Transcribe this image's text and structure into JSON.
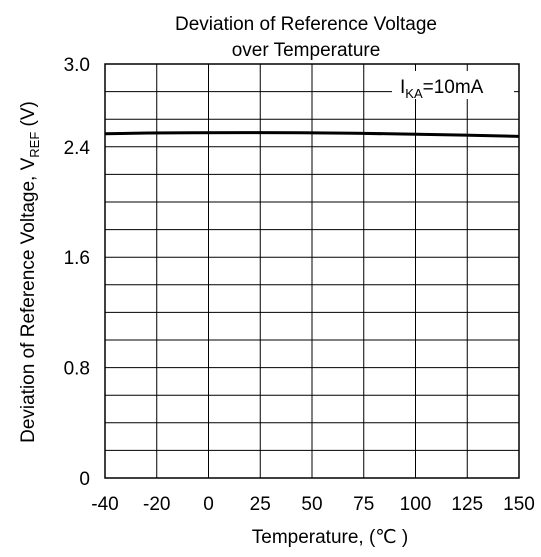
{
  "chart_data": {
    "type": "line",
    "title": [
      "Deviation of Reference Voltage",
      "over Temperature"
    ],
    "xlabel": "Temperature, (℃ )",
    "ylabel": "Deviation of Reference Voltage, V",
    "ylabel_sub": "REF",
    "ylabel_unit": " (V)",
    "xlim": [
      -40,
      150
    ],
    "ylim": [
      0,
      3.0
    ],
    "x_ticks": [
      -40,
      -20,
      0,
      25,
      50,
      75,
      100,
      125,
      150
    ],
    "x_tick_labels": [
      "-40",
      "-20",
      "0",
      "25",
      "50",
      "75",
      "100",
      "125",
      "150"
    ],
    "y_ticks": [
      0,
      0.8,
      1.6,
      2.4,
      3.0
    ],
    "y_tick_labels": [
      "0",
      "0.8",
      "1.6",
      "2.4",
      "3.0"
    ],
    "grid": true,
    "annotation": {
      "main": "I",
      "sub": "KA",
      "rest": "=10mA"
    },
    "series": [
      {
        "x": [
          -40,
          -20,
          0,
          25,
          50,
          75,
          100,
          125,
          150
        ],
        "y": [
          2.495,
          2.5,
          2.502,
          2.503,
          2.502,
          2.498,
          2.492,
          2.485,
          2.475
        ]
      }
    ]
  }
}
